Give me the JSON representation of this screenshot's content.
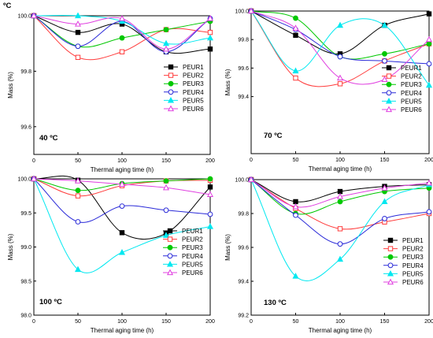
{
  "legend_entries": [
    "PEUR1",
    "PEUR2",
    "PEUR3",
    "PEUR4",
    "PEUR5",
    "PEUR6"
  ],
  "colors": {
    "PEUR1": "#000000",
    "PEUR2": "#ff3b3b",
    "PEUR3": "#00c800",
    "PEUR4": "#2a2ad8",
    "PEUR5": "#00e8f0",
    "PEUR6": "#e040e0"
  },
  "markers": {
    "PEUR1": "square-filled",
    "PEUR2": "square-open",
    "PEUR3": "circle-filled",
    "PEUR4": "circle-open",
    "PEUR5": "triangle-filled",
    "PEUR6": "triangle-open"
  },
  "chart_data": [
    {
      "type": "line",
      "title": "40 ºC",
      "corner_label": "ºC",
      "xlabel": "Thermal aging time (h)",
      "ylabel": "Mass (%)",
      "xlim": [
        0,
        200
      ],
      "ylim": [
        99.5,
        100.0
      ],
      "xticks": [
        0,
        50,
        100,
        150,
        200
      ],
      "yticks": [
        99.6,
        99.8,
        100.0
      ],
      "legend_position": "right",
      "x": [
        0,
        50,
        100,
        150,
        200
      ],
      "series": [
        {
          "name": "PEUR1",
          "values": [
            100.0,
            99.94,
            99.97,
            99.87,
            99.88
          ]
        },
        {
          "name": "PEUR2",
          "values": [
            100.0,
            99.85,
            99.87,
            99.95,
            99.94
          ]
        },
        {
          "name": "PEUR3",
          "values": [
            100.0,
            99.89,
            99.92,
            99.95,
            99.98
          ]
        },
        {
          "name": "PEUR4",
          "values": [
            100.0,
            99.89,
            99.98,
            99.87,
            99.99
          ]
        },
        {
          "name": "PEUR5",
          "values": [
            100.0,
            100.0,
            99.98,
            99.9,
            99.92
          ]
        },
        {
          "name": "PEUR6",
          "values": [
            100.0,
            99.97,
            99.99,
            99.88,
            99.99
          ]
        }
      ]
    },
    {
      "type": "line",
      "title": "70 ºC",
      "xlabel": "Thermal aging time (h)",
      "ylabel": "Mass (%)",
      "xlim": [
        0,
        200
      ],
      "ylim": [
        99.0,
        100.0
      ],
      "xticks": [
        0,
        50,
        100,
        150,
        200
      ],
      "yticks": [
        99.4,
        99.6,
        99.8,
        100.0
      ],
      "legend_position": "bottom-right",
      "x": [
        0,
        50,
        100,
        150,
        200
      ],
      "series": [
        {
          "name": "PEUR1",
          "values": [
            100.0,
            99.83,
            99.7,
            99.9,
            99.98
          ]
        },
        {
          "name": "PEUR2",
          "values": [
            100.0,
            99.53,
            99.49,
            99.65,
            99.77
          ]
        },
        {
          "name": "PEUR3",
          "values": [
            100.0,
            99.95,
            99.68,
            99.7,
            99.77
          ]
        },
        {
          "name": "PEUR4",
          "values": [
            100.0,
            99.87,
            99.68,
            99.65,
            99.63
          ]
        },
        {
          "name": "PEUR5",
          "values": [
            100.0,
            99.58,
            99.9,
            99.9,
            99.48
          ]
        },
        {
          "name": "PEUR6",
          "values": [
            100.0,
            99.88,
            99.53,
            99.52,
            99.8
          ]
        }
      ]
    },
    {
      "type": "line",
      "title": "100 ºC",
      "xlabel": "Thermal aging time (h)",
      "ylabel": "Mass (%)",
      "xlim": [
        0,
        200
      ],
      "ylim": [
        98.0,
        100.0
      ],
      "xticks": [
        0,
        50,
        100,
        150,
        200
      ],
      "yticks": [
        98.0,
        98.5,
        99.0,
        99.5,
        100.0
      ],
      "legend_position": "bottom-right",
      "x": [
        0,
        50,
        100,
        150,
        200
      ],
      "series": [
        {
          "name": "PEUR1",
          "values": [
            100.0,
            99.98,
            99.21,
            99.2,
            99.88
          ]
        },
        {
          "name": "PEUR2",
          "values": [
            100.0,
            99.75,
            99.9,
            99.97,
            99.98
          ]
        },
        {
          "name": "PEUR3",
          "values": [
            100.0,
            99.83,
            99.93,
            99.97,
            100.0
          ]
        },
        {
          "name": "PEUR4",
          "values": [
            100.0,
            99.37,
            99.6,
            99.54,
            99.48
          ]
        },
        {
          "name": "PEUR5",
          "values": [
            100.0,
            98.67,
            98.92,
            99.17,
            99.3
          ]
        },
        {
          "name": "PEUR6",
          "values": [
            100.0,
            99.97,
            99.92,
            99.87,
            99.77
          ]
        }
      ]
    },
    {
      "type": "line",
      "title": "130 ºC",
      "xlabel": "Thermal aging time (h)",
      "ylabel": "Mass (%)",
      "xlim": [
        0,
        200
      ],
      "ylim": [
        99.2,
        100.0
      ],
      "xticks": [
        0,
        50,
        100,
        150,
        200
      ],
      "yticks": [
        99.2,
        99.4,
        99.6,
        99.8,
        100.0
      ],
      "legend_position": "right",
      "x": [
        0,
        50,
        100,
        150,
        200
      ],
      "series": [
        {
          "name": "PEUR1",
          "values": [
            100.0,
            99.87,
            99.93,
            99.96,
            99.97
          ]
        },
        {
          "name": "PEUR2",
          "values": [
            100.0,
            99.83,
            99.71,
            99.75,
            99.8
          ]
        },
        {
          "name": "PEUR3",
          "values": [
            100.0,
            99.8,
            99.87,
            99.93,
            99.95
          ]
        },
        {
          "name": "PEUR4",
          "values": [
            100.0,
            99.79,
            99.62,
            99.77,
            99.81
          ]
        },
        {
          "name": "PEUR5",
          "values": [
            100.0,
            99.43,
            99.53,
            99.87,
            99.97
          ]
        },
        {
          "name": "PEUR6",
          "values": [
            100.0,
            99.84,
            99.9,
            99.95,
            99.98
          ]
        }
      ]
    }
  ]
}
